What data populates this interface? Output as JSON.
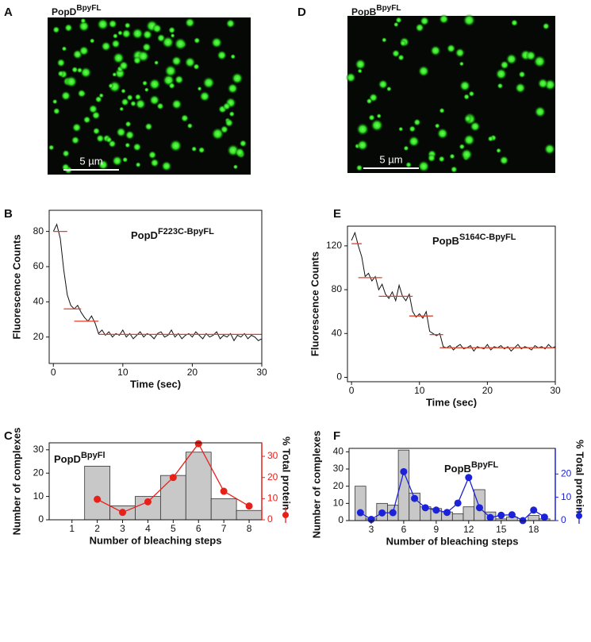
{
  "images": [
    {
      "letter": "A",
      "label": {
        "text": "PopD",
        "sup": "BpyFL"
      },
      "scale_bar": "5 µm"
    },
    {
      "letter": "D",
      "label": {
        "text": "PopB",
        "sup": "BpyFL"
      },
      "scale_bar": "5 µm"
    }
  ],
  "chart_data": [
    {
      "type": "line",
      "letter": "B",
      "annotation": {
        "text": "PopD",
        "sup": "F223C-BpyFL"
      },
      "x_label": "Time (sec)",
      "y_label": "Fluorescence Counts",
      "xlim": [
        -0.6,
        30
      ],
      "xticks": [
        0,
        10,
        20,
        30
      ],
      "ylim": [
        5,
        92
      ],
      "yticks": [
        20,
        40,
        60,
        80
      ],
      "x": [
        0,
        0.5,
        1,
        1.5,
        2,
        2.5,
        3,
        3.5,
        4,
        4.5,
        5,
        5.5,
        6,
        6.5,
        7,
        7.5,
        8,
        8.5,
        9,
        9.5,
        10,
        10.5,
        11,
        11.5,
        12,
        12.5,
        13,
        13.5,
        14,
        14.5,
        15,
        15.5,
        16,
        16.5,
        17,
        17.5,
        18,
        18.5,
        19,
        19.5,
        20,
        20.5,
        21,
        21.5,
        22,
        22.5,
        23,
        23.5,
        24,
        24.5,
        25,
        25.5,
        26,
        26.5,
        27,
        27.5,
        28,
        28.5,
        29,
        29.5,
        30
      ],
      "series": [
        {
          "color": "#111111",
          "values": [
            80,
            84,
            76,
            58,
            44,
            38,
            36,
            38,
            34,
            31,
            29,
            32,
            28,
            22,
            24,
            21,
            23,
            20,
            22,
            21,
            24,
            20,
            22,
            19,
            21,
            23,
            20,
            22,
            21,
            19,
            22,
            23,
            20,
            21,
            24,
            20,
            22,
            19,
            21,
            22,
            20,
            23,
            21,
            19,
            22,
            20,
            21,
            23,
            19,
            21,
            20,
            22,
            18,
            21,
            20,
            22,
            19,
            21,
            20,
            18,
            19
          ]
        }
      ],
      "steps": {
        "color": "#e0402a",
        "segments": [
          {
            "x": [
              0,
              2
            ],
            "value": 80
          },
          {
            "x": [
              1.5,
              4
            ],
            "value": 36
          },
          {
            "x": [
              3,
              6.5
            ],
            "value": 29
          },
          {
            "x": [
              6.5,
              30
            ],
            "value": 21.5
          }
        ]
      }
    },
    {
      "type": "line",
      "letter": "E",
      "annotation": {
        "text": "PopB",
        "sup": "S164C-BpyFL"
      },
      "x_label": "Time (sec)",
      "y_label": "Fluorescence Counts",
      "xlim": [
        -0.6,
        30
      ],
      "xticks": [
        0,
        10,
        20,
        30
      ],
      "ylim": [
        -4,
        138
      ],
      "yticks": [
        0,
        40,
        80,
        120
      ],
      "x": [
        0,
        0.5,
        1,
        1.5,
        2,
        2.5,
        3,
        3.5,
        4,
        4.5,
        5,
        5.5,
        6,
        6.5,
        7,
        7.5,
        8,
        8.5,
        9,
        9.5,
        10,
        10.5,
        11,
        11.5,
        12,
        12.5,
        13,
        13.5,
        14,
        14.5,
        15,
        15.5,
        16,
        16.5,
        17,
        17.5,
        18,
        18.5,
        19,
        19.5,
        20,
        20.5,
        21,
        21.5,
        22,
        22.5,
        23,
        23.5,
        24,
        24.5,
        25,
        25.5,
        26,
        26.5,
        27,
        27.5,
        28,
        28.5,
        29,
        29.5,
        30
      ],
      "series": [
        {
          "color": "#111111",
          "values": [
            125,
            132,
            120,
            110,
            92,
            95,
            88,
            92,
            80,
            85,
            76,
            72,
            78,
            70,
            84,
            74,
            70,
            76,
            60,
            55,
            58,
            54,
            60,
            42,
            40,
            38,
            40,
            28,
            27,
            29,
            25,
            28,
            30,
            26,
            27,
            29,
            24,
            28,
            27,
            26,
            30,
            25,
            28,
            27,
            29,
            26,
            28,
            24,
            27,
            30,
            26,
            28,
            27,
            25,
            29,
            27,
            28,
            26,
            30,
            27,
            28
          ]
        }
      ],
      "steps": {
        "color": "#e0402a",
        "segments": [
          {
            "x": [
              0,
              1.5
            ],
            "value": 122
          },
          {
            "x": [
              1,
              4.5
            ],
            "value": 91
          },
          {
            "x": [
              4,
              9
            ],
            "value": 74
          },
          {
            "x": [
              8.5,
              12
            ],
            "value": 56
          },
          {
            "x": [
              11.5,
              13.5
            ],
            "value": 39
          },
          {
            "x": [
              13,
              30
            ],
            "value": 27
          }
        ]
      }
    },
    {
      "type": "bar",
      "letter": "C",
      "annotation": {
        "text": "PopD",
        "sup": "BpyFl"
      },
      "x_label": "Number of bleaching steps",
      "y_label": "Number of complexes",
      "y2_label": "% Total protein",
      "xlim": [
        0.1,
        8.5
      ],
      "xticks": [
        1,
        2,
        3,
        4,
        5,
        6,
        7,
        8
      ],
      "ylim": [
        0,
        33
      ],
      "yticks": [
        0,
        10,
        20,
        30
      ],
      "y2lim": [
        0,
        36.4
      ],
      "y2ticks": [
        0,
        10,
        20,
        30
      ],
      "x": [
        1,
        2,
        3,
        4,
        5,
        6,
        7,
        8
      ],
      "series": [
        {
          "color": "#c8c8c8",
          "values": [
            0,
            23,
            6,
            10,
            19,
            29,
            9,
            4
          ]
        },
        {
          "color": "#e8201a",
          "axis": "y2",
          "values": [
            null,
            9.7,
            3.5,
            8.5,
            20,
            36,
            13.5,
            6.5
          ]
        }
      ]
    },
    {
      "type": "bar",
      "letter": "F",
      "annotation": {
        "text": "PopB",
        "sup": "BpyFL"
      },
      "x_label": "Number of bleaching steps",
      "y_label": "Number of complexes",
      "y2_label": "% Total protein",
      "xlim": [
        0.95,
        20
      ],
      "xticks": [
        3,
        6,
        9,
        12,
        15,
        18
      ],
      "ylim": [
        0,
        42
      ],
      "yticks": [
        0,
        10,
        20,
        30,
        40
      ],
      "y2lim": [
        0,
        31
      ],
      "y2ticks": [
        0,
        10,
        20
      ],
      "x": [
        2,
        3,
        4,
        5,
        6,
        7,
        8,
        9,
        10,
        11,
        12,
        13,
        14,
        15,
        16,
        17,
        18,
        19
      ],
      "series": [
        {
          "color": "#c8c8c8",
          "values": [
            20,
            1,
            10,
            9,
            41,
            16,
            8,
            7,
            5,
            4,
            8,
            18,
            5,
            1,
            2,
            0,
            3,
            1
          ]
        },
        {
          "color": "#1c22d8",
          "axis": "y2",
          "values": [
            3.4,
            0.5,
            3.3,
            3.4,
            21,
            9.5,
            5.5,
            4.5,
            3.5,
            7.5,
            18.5,
            5.5,
            1.3,
            2.3,
            2.5,
            0,
            4.5,
            1.5
          ]
        }
      ]
    }
  ]
}
